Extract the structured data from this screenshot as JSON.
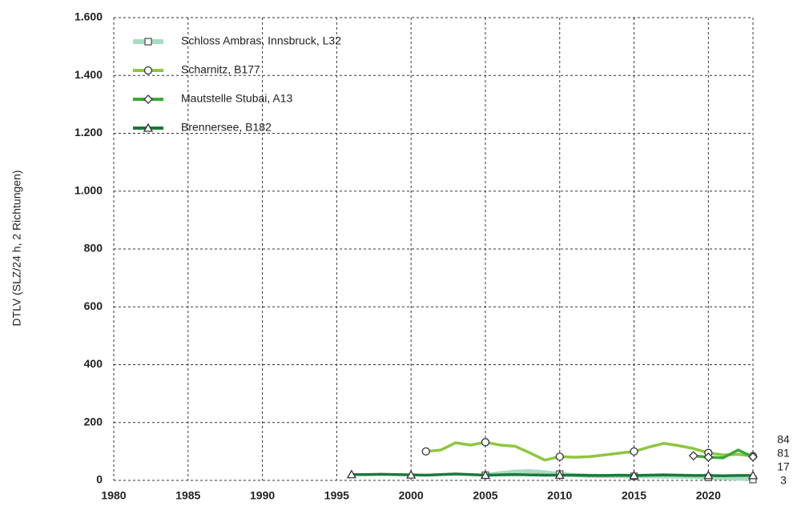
{
  "chart_data": {
    "type": "line",
    "y_label": "DTLV (SLZ/24 h, 2 Richtungen)",
    "x": [
      1996,
      1997,
      1998,
      1999,
      2000,
      2001,
      2002,
      2003,
      2004,
      2005,
      2006,
      2007,
      2008,
      2009,
      2010,
      2011,
      2012,
      2013,
      2014,
      2015,
      2016,
      2017,
      2018,
      2019,
      2020,
      2021,
      2022,
      2023
    ],
    "series": [
      {
        "name": "Schloss Ambras, Innsbruck, L32",
        "color": "#a8dcc0",
        "marker": "square",
        "values": [
          null,
          null,
          null,
          null,
          null,
          null,
          null,
          null,
          null,
          18,
          25,
          30,
          32,
          28,
          22,
          18,
          16,
          15,
          15,
          14,
          14,
          13,
          13,
          12,
          10,
          8,
          6,
          3
        ]
      },
      {
        "name": "Scharnitz, B177",
        "color": "#8dc63f",
        "marker": "circle",
        "values": [
          null,
          null,
          null,
          null,
          null,
          100,
          105,
          130,
          122,
          132,
          122,
          118,
          95,
          70,
          82,
          80,
          82,
          88,
          94,
          100,
          115,
          128,
          120,
          110,
          95,
          88,
          90,
          84
        ]
      },
      {
        "name": "Mautstelle Stubai, A13",
        "color": "#3aaa35",
        "marker": "diamond",
        "values": [
          null,
          null,
          null,
          null,
          null,
          null,
          null,
          null,
          null,
          null,
          null,
          null,
          null,
          null,
          null,
          null,
          null,
          null,
          null,
          null,
          null,
          null,
          null,
          85,
          80,
          78,
          105,
          81
        ]
      },
      {
        "name": "Brennersee, B182",
        "color": "#1a7a3a",
        "marker": "triangle",
        "values": [
          20,
          20,
          21,
          20,
          19,
          18,
          20,
          22,
          20,
          18,
          19,
          20,
          19,
          18,
          18,
          18,
          17,
          17,
          18,
          17,
          18,
          19,
          18,
          17,
          17,
          16,
          17,
          17
        ]
      }
    ],
    "xlim": [
      1980,
      2023
    ],
    "xticks": [
      1980,
      1985,
      1990,
      1995,
      2000,
      2005,
      2010,
      2015,
      2020
    ],
    "ylim": [
      0,
      1600
    ],
    "yticks": [
      0,
      200,
      400,
      600,
      800,
      {
        "value": 1000,
        "label": "1.000"
      },
      {
        "value": 1200,
        "label": "1.200"
      },
      {
        "value": 1400,
        "label": "1.400"
      },
      {
        "value": 1600,
        "label": "1.600"
      }
    ],
    "grid": true,
    "legend": "top-left"
  }
}
